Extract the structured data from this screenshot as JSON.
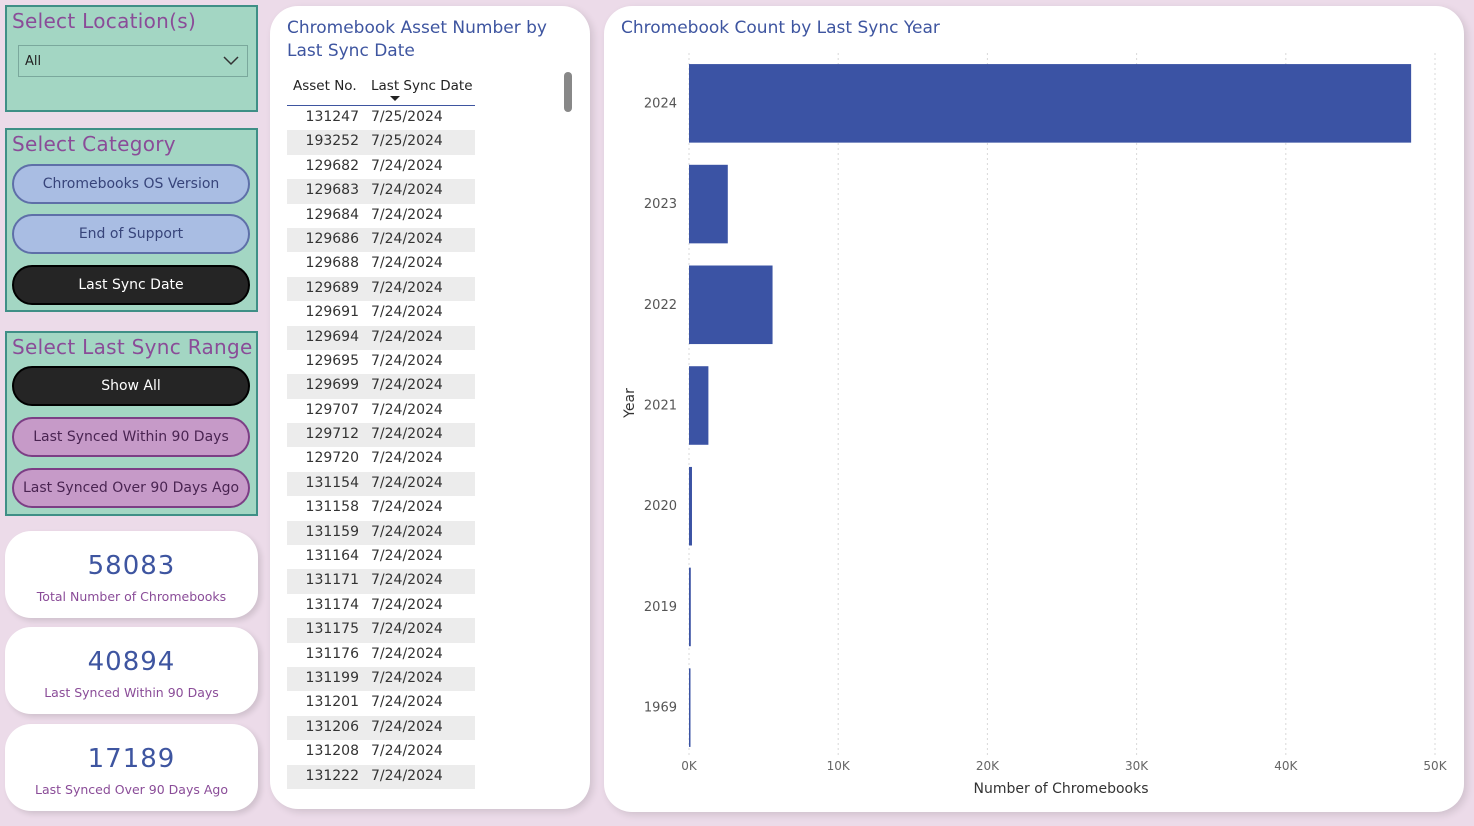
{
  "location": {
    "title": "Select Location(s)",
    "selected": "All"
  },
  "category": {
    "title": "Select Category",
    "buttons": [
      {
        "label": "Chromebooks OS Version",
        "state": "inactive"
      },
      {
        "label": "End of Support",
        "state": "inactive"
      },
      {
        "label": "Last Sync Date",
        "state": "active"
      }
    ]
  },
  "sync_range": {
    "title": "Select Last Sync Range",
    "buttons": [
      {
        "label": "Show All",
        "state": "active"
      },
      {
        "label": "Last Synced Within 90 Days",
        "state": "inactive"
      },
      {
        "label": "Last Synced Over 90 Days Ago",
        "state": "inactive"
      }
    ]
  },
  "kpis": [
    {
      "value": "58083",
      "label": "Total Number of Chromebooks"
    },
    {
      "value": "40894",
      "label": "Last Synced Within 90 Days"
    },
    {
      "value": "17189",
      "label": "Last Synced Over 90 Days Ago"
    }
  ],
  "table": {
    "title_line1": "Chromebook Asset Number by",
    "title_line2": "Last Sync Date",
    "headers": [
      "Asset No.",
      "Last Sync Date"
    ],
    "sort_column": "Last Sync Date",
    "sort_direction": "descending",
    "rows": [
      [
        "131247",
        "7/25/2024"
      ],
      [
        "193252",
        "7/25/2024"
      ],
      [
        "129682",
        "7/24/2024"
      ],
      [
        "129683",
        "7/24/2024"
      ],
      [
        "129684",
        "7/24/2024"
      ],
      [
        "129686",
        "7/24/2024"
      ],
      [
        "129688",
        "7/24/2024"
      ],
      [
        "129689",
        "7/24/2024"
      ],
      [
        "129691",
        "7/24/2024"
      ],
      [
        "129694",
        "7/24/2024"
      ],
      [
        "129695",
        "7/24/2024"
      ],
      [
        "129699",
        "7/24/2024"
      ],
      [
        "129707",
        "7/24/2024"
      ],
      [
        "129712",
        "7/24/2024"
      ],
      [
        "129720",
        "7/24/2024"
      ],
      [
        "131154",
        "7/24/2024"
      ],
      [
        "131158",
        "7/24/2024"
      ],
      [
        "131159",
        "7/24/2024"
      ],
      [
        "131164",
        "7/24/2024"
      ],
      [
        "131171",
        "7/24/2024"
      ],
      [
        "131174",
        "7/24/2024"
      ],
      [
        "131175",
        "7/24/2024"
      ],
      [
        "131176",
        "7/24/2024"
      ],
      [
        "131199",
        "7/24/2024"
      ],
      [
        "131201",
        "7/24/2024"
      ],
      [
        "131206",
        "7/24/2024"
      ],
      [
        "131208",
        "7/24/2024"
      ],
      [
        "131222",
        "7/24/2024"
      ]
    ]
  },
  "chart_data": {
    "type": "bar",
    "orientation": "horizontal",
    "title": "Chromebook Count by Last Sync Year",
    "xlabel": "Number of Chromebooks",
    "ylabel": "Year",
    "categories": [
      "2024",
      "2023",
      "2022",
      "2021",
      "2020",
      "2019",
      "1969"
    ],
    "values": [
      48400,
      2600,
      5600,
      1300,
      200,
      120,
      50
    ],
    "xlim": [
      0,
      50000
    ],
    "xticks": [
      "0K",
      "10K",
      "20K",
      "30K",
      "40K",
      "50K"
    ],
    "xtick_values": [
      0,
      10000,
      20000,
      30000,
      40000,
      50000
    ],
    "grid": "vertical dotted",
    "bar_color": "#3b53a4"
  },
  "colors": {
    "accent_blue": "#3e55a0",
    "title_purple": "#8a4c98",
    "panel_green": "#a3d6c3",
    "background": "#ecdbe9"
  }
}
